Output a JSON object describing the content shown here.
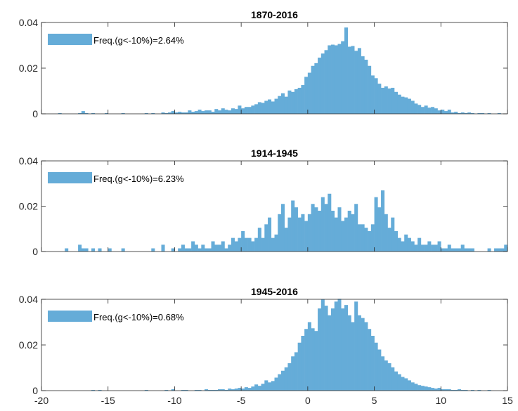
{
  "chart_data": [
    {
      "type": "bar",
      "title": "1870-2016",
      "legend": {
        "label": "Freq.(g<-10%)=2.64%",
        "placement": "top-left"
      },
      "color": "#65acd8",
      "xlim": [
        -20,
        15
      ],
      "ylim": [
        0,
        0.04
      ],
      "yticks": [
        "0",
        "0.02",
        "0.04"
      ],
      "xticks": [],
      "bin_width": 0.25,
      "x": [
        -20.0,
        -19.75,
        -19.5,
        -19.25,
        -19.0,
        -18.75,
        -18.5,
        -18.25,
        -18.0,
        -17.75,
        -17.5,
        -17.25,
        -17.0,
        -16.75,
        -16.5,
        -16.25,
        -16.0,
        -15.75,
        -15.5,
        -15.25,
        -15.0,
        -14.75,
        -14.5,
        -14.25,
        -14.0,
        -13.75,
        -13.5,
        -13.25,
        -13.0,
        -12.75,
        -12.5,
        -12.25,
        -12.0,
        -11.75,
        -11.5,
        -11.25,
        -11.0,
        -10.75,
        -10.5,
        -10.25,
        -10.0,
        -9.75,
        -9.5,
        -9.25,
        -9.0,
        -8.75,
        -8.5,
        -8.25,
        -8.0,
        -7.75,
        -7.5,
        -7.25,
        -7.0,
        -6.75,
        -6.5,
        -6.25,
        -6.0,
        -5.75,
        -5.5,
        -5.25,
        -5.0,
        -4.75,
        -4.5,
        -4.25,
        -4.0,
        -3.75,
        -3.5,
        -3.25,
        -3.0,
        -2.75,
        -2.5,
        -2.25,
        -2.0,
        -1.75,
        -1.5,
        -1.25,
        -1.0,
        -0.75,
        -0.5,
        -0.25,
        0.0,
        0.25,
        0.5,
        0.75,
        1.0,
        1.25,
        1.5,
        1.75,
        2.0,
        2.25,
        2.5,
        2.75,
        3.0,
        3.25,
        3.5,
        3.75,
        4.0,
        4.25,
        4.5,
        4.75,
        5.0,
        5.25,
        5.5,
        5.75,
        6.0,
        6.25,
        6.5,
        6.75,
        7.0,
        7.25,
        7.5,
        7.75,
        8.0,
        8.25,
        8.5,
        8.75,
        9.0,
        9.25,
        9.5,
        9.75,
        10.0,
        10.25,
        10.5,
        10.75,
        11.0,
        11.25,
        11.5,
        11.75,
        12.0,
        12.25,
        12.5,
        12.75,
        13.0,
        13.25,
        13.5,
        13.75,
        14.0,
        14.25,
        14.5,
        14.75
      ],
      "values": [
        0,
        0,
        0,
        0,
        0,
        0.0003,
        0,
        0,
        0,
        0,
        0,
        0.0003,
        0.0012,
        0.0003,
        0,
        0.0003,
        0,
        0,
        0,
        0.0003,
        0,
        0,
        0,
        0,
        0.0003,
        0,
        0,
        0,
        0,
        0,
        0,
        0.0003,
        0,
        0.0003,
        0,
        0,
        0.0006,
        0.0003,
        0.0006,
        0.0012,
        0.0006,
        0.0009,
        0.0006,
        0.0006,
        0.0015,
        0.0009,
        0.0012,
        0.0018,
        0.0012,
        0.0015,
        0.0015,
        0.0009,
        0.0021,
        0.0015,
        0.0024,
        0.0018,
        0.0015,
        0.0024,
        0.0021,
        0.0036,
        0.0024,
        0.003,
        0.003,
        0.0036,
        0.0042,
        0.0051,
        0.0048,
        0.0057,
        0.0063,
        0.0054,
        0.0066,
        0.0078,
        0.009,
        0.0075,
        0.0102,
        0.0096,
        0.0108,
        0.0114,
        0.0126,
        0.0162,
        0.018,
        0.021,
        0.0222,
        0.0246,
        0.0264,
        0.0279,
        0.03,
        0.0303,
        0.03,
        0.0306,
        0.0318,
        0.0378,
        0.0294,
        0.0297,
        0.0276,
        0.0288,
        0.0252,
        0.0237,
        0.021,
        0.0168,
        0.0156,
        0.0132,
        0.0114,
        0.012,
        0.0111,
        0.0114,
        0.0096,
        0.0084,
        0.0075,
        0.0072,
        0.0066,
        0.0057,
        0.0045,
        0.0039,
        0.003,
        0.0036,
        0.0027,
        0.003,
        0.0024,
        0.0015,
        0.0018,
        0.0012,
        0.0018,
        0.0006,
        0.0009,
        0.0003,
        0.0006,
        0.0003,
        0.0006,
        0.0003,
        0,
        0.0003,
        0.0003,
        0,
        0.0003,
        0,
        0,
        0.0003,
        0,
        0
      ]
    },
    {
      "type": "bar",
      "title": "1914-1945",
      "legend": {
        "label": "Freq.(g<-10%)=6.23%",
        "placement": "top-left"
      },
      "color": "#65acd8",
      "xlim": [
        -20,
        15
      ],
      "ylim": [
        0,
        0.04
      ],
      "yticks": [
        "0",
        "0.02",
        "0.04"
      ],
      "xticks": [],
      "bin_width": 0.25,
      "x": [
        -20.0,
        -19.75,
        -19.5,
        -19.25,
        -19.0,
        -18.75,
        -18.5,
        -18.25,
        -18.0,
        -17.75,
        -17.5,
        -17.25,
        -17.0,
        -16.75,
        -16.5,
        -16.25,
        -16.0,
        -15.75,
        -15.5,
        -15.25,
        -15.0,
        -14.75,
        -14.5,
        -14.25,
        -14.0,
        -13.75,
        -13.5,
        -13.25,
        -13.0,
        -12.75,
        -12.5,
        -12.25,
        -12.0,
        -11.75,
        -11.5,
        -11.25,
        -11.0,
        -10.75,
        -10.5,
        -10.25,
        -10.0,
        -9.75,
        -9.5,
        -9.25,
        -9.0,
        -8.75,
        -8.5,
        -8.25,
        -8.0,
        -7.75,
        -7.5,
        -7.25,
        -7.0,
        -6.75,
        -6.5,
        -6.25,
        -6.0,
        -5.75,
        -5.5,
        -5.25,
        -5.0,
        -4.75,
        -4.5,
        -4.25,
        -4.0,
        -3.75,
        -3.5,
        -3.25,
        -3.0,
        -2.75,
        -2.5,
        -2.25,
        -2.0,
        -1.75,
        -1.5,
        -1.25,
        -1.0,
        -0.75,
        -0.5,
        -0.25,
        0.0,
        0.25,
        0.5,
        0.75,
        1.0,
        1.25,
        1.5,
        1.75,
        2.0,
        2.25,
        2.5,
        2.75,
        3.0,
        3.25,
        3.5,
        3.75,
        4.0,
        4.25,
        4.5,
        4.75,
        5.0,
        5.25,
        5.5,
        5.75,
        6.0,
        6.25,
        6.5,
        6.75,
        7.0,
        7.25,
        7.5,
        7.75,
        8.0,
        8.25,
        8.5,
        8.75,
        9.0,
        9.25,
        9.5,
        9.75,
        10.0,
        10.25,
        10.5,
        10.75,
        11.0,
        11.25,
        11.5,
        11.75,
        12.0,
        12.25,
        12.5,
        12.75,
        13.0,
        13.25,
        13.5,
        13.75,
        14.0,
        14.25,
        14.5,
        14.75
      ],
      "values": [
        0,
        0,
        0,
        0,
        0,
        0,
        0,
        0.0014,
        0,
        0,
        0,
        0.003,
        0.0014,
        0.0014,
        0,
        0.0014,
        0,
        0.0014,
        0,
        0,
        0.0014,
        0,
        0,
        0,
        0.0014,
        0,
        0,
        0,
        0,
        0,
        0,
        0,
        0,
        0.0014,
        0,
        0,
        0.003,
        0,
        0,
        0.0014,
        0,
        0.0014,
        0.003,
        0.0014,
        0.0014,
        0.0045,
        0.003,
        0.0014,
        0.003,
        0.0014,
        0.0014,
        0.0045,
        0.003,
        0.003,
        0.0045,
        0.0014,
        0.003,
        0.006,
        0.0045,
        0.006,
        0.009,
        0.006,
        0.006,
        0.0045,
        0.006,
        0.0105,
        0.006,
        0.012,
        0.015,
        0.006,
        0.0075,
        0.0165,
        0.021,
        0.0105,
        0.015,
        0.0225,
        0.0195,
        0.015,
        0.0165,
        0.0135,
        0.0165,
        0.021,
        0.0195,
        0.018,
        0.024,
        0.021,
        0.0255,
        0.018,
        0.015,
        0.0195,
        0.0135,
        0.015,
        0.018,
        0.0165,
        0.021,
        0.012,
        0.012,
        0.0105,
        0.009,
        0.012,
        0.024,
        0.0195,
        0.027,
        0.0165,
        0.0105,
        0.015,
        0.009,
        0.006,
        0.0045,
        0.0075,
        0.006,
        0.0045,
        0.003,
        0.006,
        0.003,
        0.003,
        0.0045,
        0.003,
        0.003,
        0.0045,
        0.0014,
        0.0014,
        0.003,
        0.0014,
        0.0014,
        0.0014,
        0.003,
        0.0014,
        0.0014,
        0.0014,
        0,
        0,
        0,
        0,
        0.0014,
        0,
        0.0014,
        0.0014,
        0.0014,
        0.003
      ]
    },
    {
      "type": "bar",
      "title": "1945-2016",
      "legend": {
        "label": "Freq.(g<-10%)=0.68%",
        "placement": "top-left"
      },
      "color": "#65acd8",
      "xlim": [
        -20,
        15
      ],
      "ylim": [
        0,
        0.04
      ],
      "yticks": [
        "0",
        "0.02",
        "0.04"
      ],
      "xticks": [
        "-20",
        "-15",
        "-10",
        "-5",
        "0",
        "5",
        "10",
        "15"
      ],
      "bin_width": 0.25,
      "x": [
        -20.0,
        -19.75,
        -19.5,
        -19.25,
        -19.0,
        -18.75,
        -18.5,
        -18.25,
        -18.0,
        -17.75,
        -17.5,
        -17.25,
        -17.0,
        -16.75,
        -16.5,
        -16.25,
        -16.0,
        -15.75,
        -15.5,
        -15.25,
        -15.0,
        -14.75,
        -14.5,
        -14.25,
        -14.0,
        -13.75,
        -13.5,
        -13.25,
        -13.0,
        -12.75,
        -12.5,
        -12.25,
        -12.0,
        -11.75,
        -11.5,
        -11.25,
        -11.0,
        -10.75,
        -10.5,
        -10.25,
        -10.0,
        -9.75,
        -9.5,
        -9.25,
        -9.0,
        -8.75,
        -8.5,
        -8.25,
        -8.0,
        -7.75,
        -7.5,
        -7.25,
        -7.0,
        -6.75,
        -6.5,
        -6.25,
        -6.0,
        -5.75,
        -5.5,
        -5.25,
        -5.0,
        -4.75,
        -4.5,
        -4.25,
        -4.0,
        -3.75,
        -3.5,
        -3.25,
        -3.0,
        -2.75,
        -2.5,
        -2.25,
        -2.0,
        -1.75,
        -1.5,
        -1.25,
        -1.0,
        -0.75,
        -0.5,
        -0.25,
        0.0,
        0.25,
        0.5,
        0.75,
        1.0,
        1.25,
        1.5,
        1.75,
        2.0,
        2.25,
        2.5,
        2.75,
        3.0,
        3.25,
        3.5,
        3.75,
        4.0,
        4.25,
        4.5,
        4.75,
        5.0,
        5.25,
        5.5,
        5.75,
        6.0,
        6.25,
        6.5,
        6.75,
        7.0,
        7.25,
        7.5,
        7.75,
        8.0,
        8.25,
        8.5,
        8.75,
        9.0,
        9.25,
        9.5,
        9.75,
        10.0,
        10.25,
        10.5,
        10.75,
        11.0,
        11.25,
        11.5,
        11.75,
        12.0,
        12.25,
        12.5,
        12.75,
        13.0,
        13.25,
        13.5,
        13.75,
        14.0,
        14.25,
        14.5,
        14.75
      ],
      "values": [
        0,
        0,
        0,
        0,
        0,
        0,
        0,
        0,
        0,
        0,
        0,
        0,
        0,
        0,
        0,
        0.0003,
        0,
        0.0003,
        0,
        0,
        0,
        0,
        0,
        0,
        0,
        0,
        0,
        0,
        0,
        0,
        0,
        0.0003,
        0,
        0,
        0,
        0,
        0,
        0.0003,
        0,
        0.0006,
        0,
        0,
        0.0003,
        0.0003,
        0,
        0,
        0.0003,
        0.0003,
        0,
        0.0006,
        0.0003,
        0.0003,
        0.0003,
        0.0006,
        0.0006,
        0.0003,
        0.0009,
        0.0006,
        0.0009,
        0.0012,
        0.0009,
        0.0015,
        0.0012,
        0.0018,
        0.0027,
        0.0021,
        0.003,
        0.0045,
        0.0036,
        0.0042,
        0.0057,
        0.0072,
        0.0087,
        0.0102,
        0.012,
        0.015,
        0.0168,
        0.021,
        0.024,
        0.027,
        0.03,
        0.0273,
        0.0261,
        0.036,
        0.0399,
        0.0372,
        0.033,
        0.036,
        0.039,
        0.0402,
        0.036,
        0.0375,
        0.033,
        0.03,
        0.039,
        0.033,
        0.0318,
        0.03,
        0.027,
        0.024,
        0.021,
        0.018,
        0.015,
        0.0132,
        0.012,
        0.0102,
        0.0084,
        0.0072,
        0.006,
        0.0054,
        0.0045,
        0.0036,
        0.003,
        0.0024,
        0.0021,
        0.0018,
        0.0015,
        0.0012,
        0.0009,
        0.0012,
        0.0006,
        0.0006,
        0.0006,
        0.0003,
        0.0003,
        0.0006,
        0.0003,
        0.0003,
        0,
        0.0003,
        0,
        0.0003,
        0,
        0,
        0.0003,
        0,
        0,
        0,
        0,
        0
      ]
    }
  ]
}
